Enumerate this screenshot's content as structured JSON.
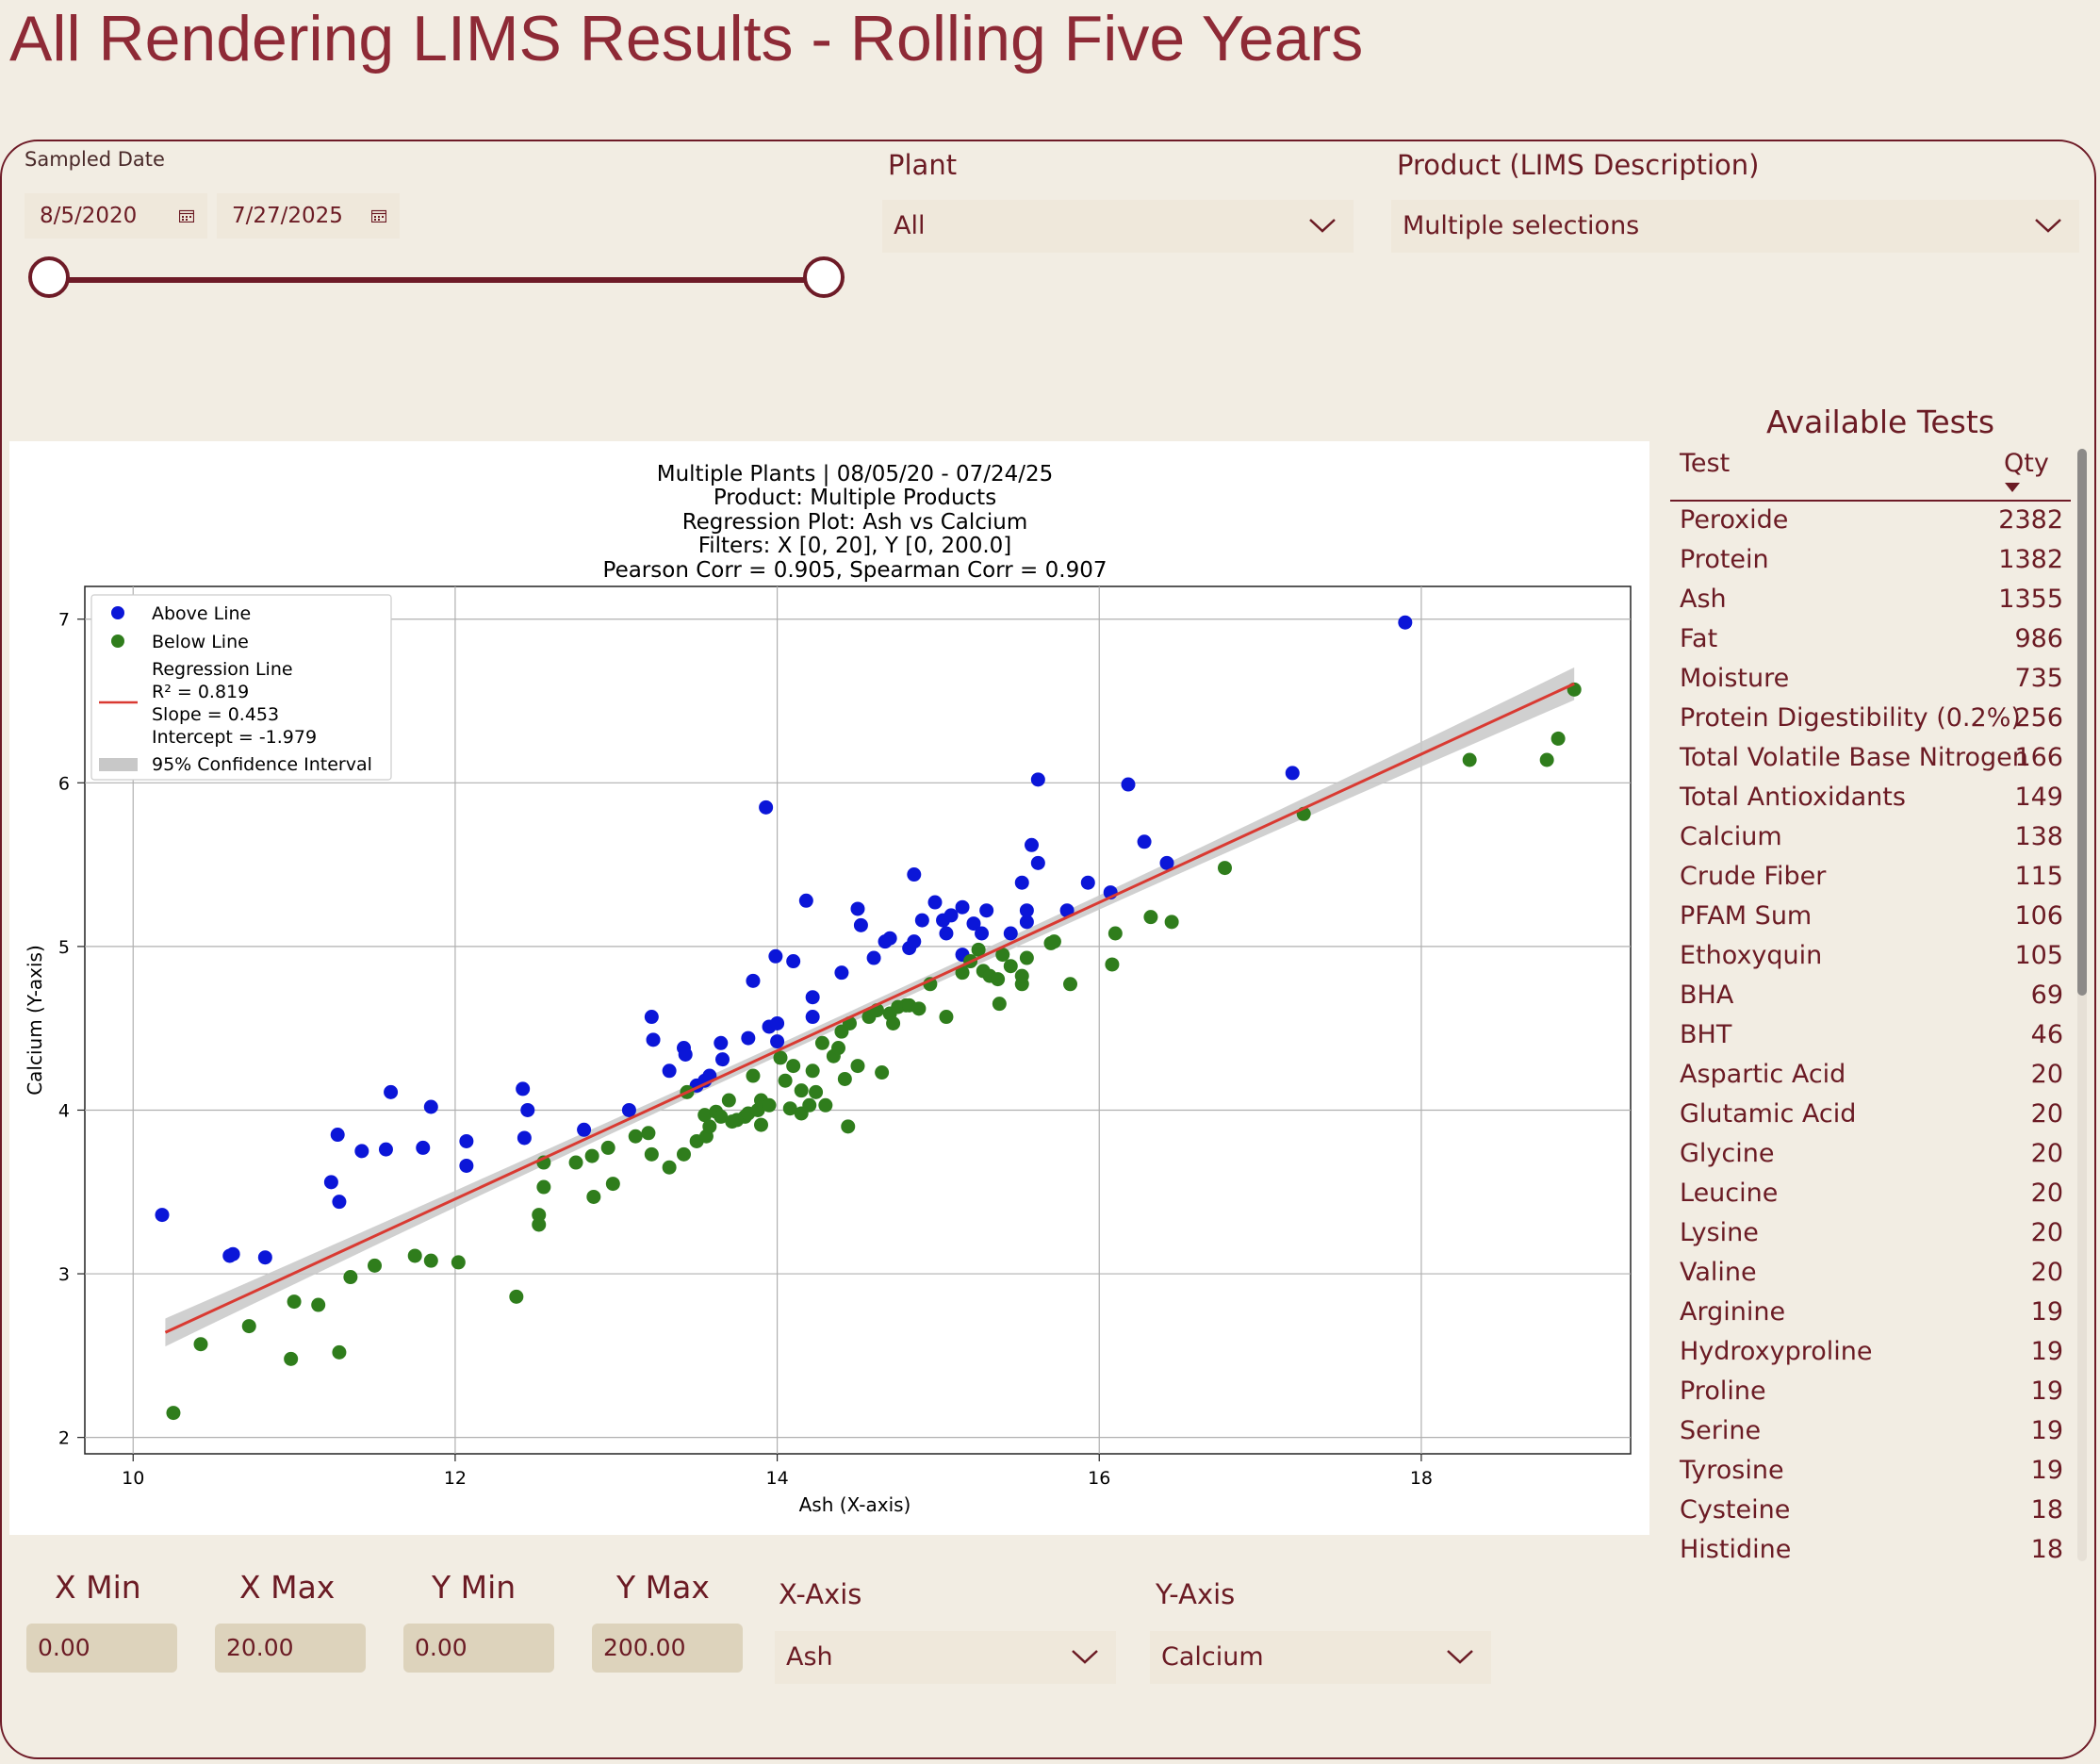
{
  "page": {
    "title": "All Rendering LIMS Results - Rolling Five Years"
  },
  "date_filter": {
    "label": "Sampled Date",
    "start": "8/5/2020",
    "end": "7/27/2025"
  },
  "plant_filter": {
    "label": "Plant",
    "value": "All"
  },
  "product_filter": {
    "label": "Product (LIMS Description)",
    "value": "Multiple selections"
  },
  "available_tests": {
    "title": "Available Tests",
    "col_test": "Test",
    "col_qty": "Qty",
    "rows": [
      {
        "name": "Peroxide",
        "qty": "2382"
      },
      {
        "name": "Protein",
        "qty": "1382"
      },
      {
        "name": "Ash",
        "qty": "1355"
      },
      {
        "name": "Fat",
        "qty": "986"
      },
      {
        "name": "Moisture",
        "qty": "735"
      },
      {
        "name": "Protein Digestibility (0.2%)",
        "qty": "256"
      },
      {
        "name": "Total Volatile Base Nitrogen",
        "qty": "166"
      },
      {
        "name": "Total Antioxidants",
        "qty": "149"
      },
      {
        "name": "Calcium",
        "qty": "138"
      },
      {
        "name": "Crude Fiber",
        "qty": "115"
      },
      {
        "name": "PFAM Sum",
        "qty": "106"
      },
      {
        "name": "Ethoxyquin",
        "qty": "105"
      },
      {
        "name": "BHA",
        "qty": "69"
      },
      {
        "name": "BHT",
        "qty": "46"
      },
      {
        "name": "Aspartic Acid",
        "qty": "20"
      },
      {
        "name": "Glutamic Acid",
        "qty": "20"
      },
      {
        "name": "Glycine",
        "qty": "20"
      },
      {
        "name": "Leucine",
        "qty": "20"
      },
      {
        "name": "Lysine",
        "qty": "20"
      },
      {
        "name": "Valine",
        "qty": "20"
      },
      {
        "name": "Arginine",
        "qty": "19"
      },
      {
        "name": "Hydroxyproline",
        "qty": "19"
      },
      {
        "name": "Proline",
        "qty": "19"
      },
      {
        "name": "Serine",
        "qty": "19"
      },
      {
        "name": "Tyrosine",
        "qty": "19"
      },
      {
        "name": "Cysteine",
        "qty": "18"
      },
      {
        "name": "Histidine",
        "qty": "18"
      }
    ]
  },
  "range_controls": {
    "x_min": {
      "label": "X Min",
      "value": "0.00"
    },
    "x_max": {
      "label": "X Max",
      "value": "20.00"
    },
    "y_min": {
      "label": "Y Min",
      "value": "0.00"
    },
    "y_max": {
      "label": "Y Max",
      "value": "200.00"
    }
  },
  "axis_select": {
    "x": {
      "label": "X-Axis",
      "value": "Ash"
    },
    "y": {
      "label": "Y-Axis",
      "value": "Calcium"
    }
  },
  "chart_data": {
    "type": "scatter",
    "title_lines": [
      "Multiple Plants | 08/05/20 - 07/24/25",
      "Product: Multiple Products",
      "Regression Plot: Ash vs Calcium",
      "Filters: X [0, 20], Y [0, 200.0]",
      "Pearson Corr = 0.905, Spearman Corr = 0.907"
    ],
    "xlabel": "Ash (X-axis)",
    "ylabel": "Calcium (Y-axis)",
    "xlim": [
      9.7,
      19.3
    ],
    "ylim": [
      1.9,
      7.2
    ],
    "xticks": [
      10,
      12,
      14,
      16,
      18
    ],
    "yticks": [
      2,
      3,
      4,
      5,
      6,
      7
    ],
    "grid": true,
    "legend": {
      "placement": "top-left",
      "above": "Above Line",
      "below": "Below Line",
      "regression_lines": [
        "Regression Line",
        "R² = 0.819",
        "Slope = 0.453",
        "Intercept = -1.979"
      ],
      "ci": "95% Confidence Interval"
    },
    "colors": {
      "above": "#0b16d8",
      "below": "#2f7d1c",
      "line": "#d93a32",
      "ci": "#c8c8c8"
    },
    "regression": {
      "slope": 0.453,
      "intercept": -1.979,
      "x_range": [
        10.2,
        18.95
      ]
    },
    "series": [
      {
        "name": "Above Line",
        "points": [
          [
            10.18,
            3.36
          ],
          [
            10.6,
            3.11
          ],
          [
            10.62,
            3.12
          ],
          [
            10.82,
            3.1
          ],
          [
            11.23,
            3.56
          ],
          [
            11.27,
            3.85
          ],
          [
            11.28,
            3.44
          ],
          [
            11.42,
            3.75
          ],
          [
            11.57,
            3.76
          ],
          [
            11.6,
            4.11
          ],
          [
            11.8,
            3.77
          ],
          [
            11.85,
            4.02
          ],
          [
            12.07,
            3.81
          ],
          [
            12.07,
            3.66
          ],
          [
            12.42,
            4.13
          ],
          [
            12.43,
            3.83
          ],
          [
            12.45,
            4.0
          ],
          [
            12.8,
            3.88
          ],
          [
            13.08,
            4.0
          ],
          [
            13.22,
            4.57
          ],
          [
            13.23,
            4.43
          ],
          [
            13.33,
            4.24
          ],
          [
            13.42,
            4.38
          ],
          [
            13.43,
            4.34
          ],
          [
            13.5,
            4.15
          ],
          [
            13.55,
            4.18
          ],
          [
            13.58,
            4.21
          ],
          [
            13.65,
            4.41
          ],
          [
            13.66,
            4.31
          ],
          [
            13.82,
            4.44
          ],
          [
            13.85,
            4.79
          ],
          [
            13.93,
            5.85
          ],
          [
            13.95,
            4.51
          ],
          [
            13.99,
            4.94
          ],
          [
            14.0,
            4.53
          ],
          [
            14.0,
            4.42
          ],
          [
            14.1,
            4.91
          ],
          [
            14.18,
            5.28
          ],
          [
            14.22,
            4.69
          ],
          [
            14.22,
            4.57
          ],
          [
            14.4,
            4.84
          ],
          [
            14.5,
            5.23
          ],
          [
            14.52,
            5.13
          ],
          [
            14.6,
            4.93
          ],
          [
            14.67,
            5.03
          ],
          [
            14.7,
            5.05
          ],
          [
            14.82,
            4.99
          ],
          [
            14.85,
            5.44
          ],
          [
            14.85,
            5.03
          ],
          [
            14.9,
            5.16
          ],
          [
            14.98,
            5.27
          ],
          [
            15.03,
            5.16
          ],
          [
            15.05,
            5.08
          ],
          [
            15.08,
            5.19
          ],
          [
            15.15,
            5.24
          ],
          [
            15.15,
            4.95
          ],
          [
            15.22,
            5.14
          ],
          [
            15.27,
            5.08
          ],
          [
            15.3,
            5.22
          ],
          [
            15.45,
            5.08
          ],
          [
            15.52,
            5.39
          ],
          [
            15.55,
            5.22
          ],
          [
            15.55,
            5.15
          ],
          [
            15.58,
            5.62
          ],
          [
            15.62,
            5.51
          ],
          [
            15.62,
            6.02
          ],
          [
            15.8,
            5.22
          ],
          [
            15.93,
            5.39
          ],
          [
            16.07,
            5.33
          ],
          [
            16.18,
            5.99
          ],
          [
            16.28,
            5.64
          ],
          [
            16.42,
            5.51
          ],
          [
            17.2,
            6.06
          ],
          [
            17.9,
            6.98
          ]
        ]
      },
      {
        "name": "Below Line",
        "points": [
          [
            10.25,
            2.15
          ],
          [
            10.42,
            2.57
          ],
          [
            10.72,
            2.68
          ],
          [
            10.98,
            2.48
          ],
          [
            11.0,
            2.83
          ],
          [
            11.15,
            2.81
          ],
          [
            11.28,
            2.52
          ],
          [
            11.35,
            2.98
          ],
          [
            11.5,
            3.05
          ],
          [
            11.75,
            3.11
          ],
          [
            11.85,
            3.08
          ],
          [
            12.02,
            3.07
          ],
          [
            12.38,
            2.86
          ],
          [
            12.52,
            3.36
          ],
          [
            12.52,
            3.3
          ],
          [
            12.55,
            3.53
          ],
          [
            12.55,
            3.68
          ],
          [
            12.75,
            3.68
          ],
          [
            12.85,
            3.72
          ],
          [
            12.86,
            3.47
          ],
          [
            12.95,
            3.77
          ],
          [
            12.98,
            3.55
          ],
          [
            13.12,
            3.84
          ],
          [
            13.2,
            3.86
          ],
          [
            13.22,
            3.73
          ],
          [
            13.33,
            3.65
          ],
          [
            13.42,
            3.73
          ],
          [
            13.44,
            4.11
          ],
          [
            13.5,
            3.81
          ],
          [
            13.55,
            3.97
          ],
          [
            13.56,
            3.84
          ],
          [
            13.58,
            3.9
          ],
          [
            13.62,
            3.99
          ],
          [
            13.65,
            3.96
          ],
          [
            13.7,
            4.06
          ],
          [
            13.72,
            3.93
          ],
          [
            13.75,
            3.94
          ],
          [
            13.8,
            3.96
          ],
          [
            13.82,
            3.98
          ],
          [
            13.85,
            4.21
          ],
          [
            13.88,
            4.0
          ],
          [
            13.9,
            3.91
          ],
          [
            13.9,
            4.06
          ],
          [
            13.95,
            4.03
          ],
          [
            14.02,
            4.32
          ],
          [
            14.05,
            4.18
          ],
          [
            14.08,
            4.01
          ],
          [
            14.1,
            4.27
          ],
          [
            14.15,
            4.12
          ],
          [
            14.15,
            3.98
          ],
          [
            14.2,
            4.03
          ],
          [
            14.22,
            4.24
          ],
          [
            14.24,
            4.11
          ],
          [
            14.28,
            4.41
          ],
          [
            14.3,
            4.03
          ],
          [
            14.35,
            4.33
          ],
          [
            14.38,
            4.38
          ],
          [
            14.4,
            4.48
          ],
          [
            14.42,
            4.19
          ],
          [
            14.44,
            3.9
          ],
          [
            14.45,
            4.53
          ],
          [
            14.5,
            4.27
          ],
          [
            14.57,
            4.57
          ],
          [
            14.62,
            4.61
          ],
          [
            14.65,
            4.23
          ],
          [
            14.7,
            4.59
          ],
          [
            14.72,
            4.53
          ],
          [
            14.75,
            4.63
          ],
          [
            14.8,
            4.64
          ],
          [
            14.82,
            4.64
          ],
          [
            14.88,
            4.62
          ],
          [
            14.95,
            4.77
          ],
          [
            15.05,
            4.57
          ],
          [
            15.15,
            4.84
          ],
          [
            15.2,
            4.91
          ],
          [
            15.25,
            4.98
          ],
          [
            15.28,
            4.85
          ],
          [
            15.32,
            4.82
          ],
          [
            15.37,
            4.8
          ],
          [
            15.38,
            4.65
          ],
          [
            15.4,
            4.95
          ],
          [
            15.45,
            4.88
          ],
          [
            15.52,
            4.77
          ],
          [
            15.52,
            4.82
          ],
          [
            15.55,
            4.93
          ],
          [
            15.7,
            5.02
          ],
          [
            15.72,
            5.03
          ],
          [
            15.82,
            4.77
          ],
          [
            16.08,
            4.89
          ],
          [
            16.1,
            5.08
          ],
          [
            16.32,
            5.18
          ],
          [
            16.45,
            5.15
          ],
          [
            16.78,
            5.48
          ],
          [
            17.27,
            5.81
          ],
          [
            18.3,
            6.14
          ],
          [
            18.78,
            6.14
          ],
          [
            18.85,
            6.27
          ],
          [
            18.95,
            6.57
          ]
        ]
      }
    ]
  }
}
